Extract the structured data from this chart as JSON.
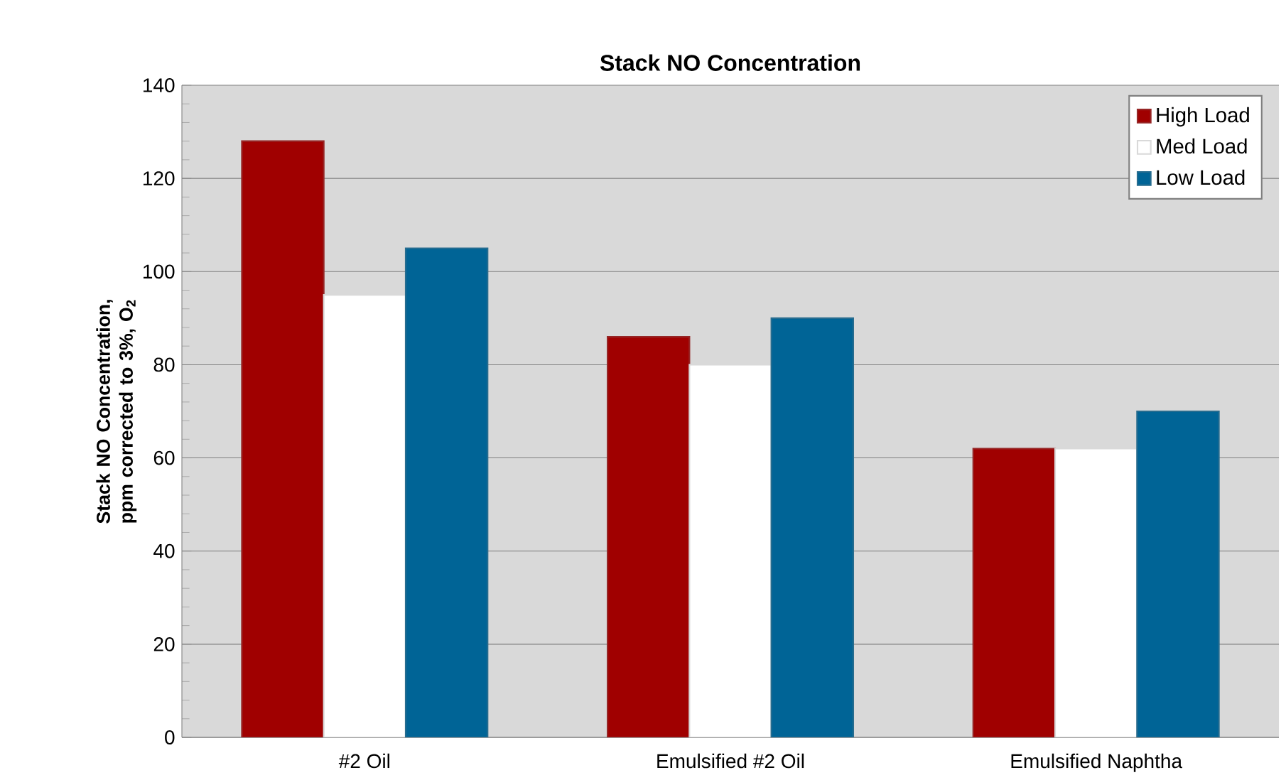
{
  "chart_data": {
    "type": "bar",
    "title": "Stack NO Concentration",
    "ylabel": "Stack NO Concentration, ppm corrected to 3%, O$_{2}$",
    "categories": [
      "#2 Oil",
      "Emulsified #2 Oil",
      "Emulsified Naphtha"
    ],
    "series": [
      {
        "name": "High Load",
        "color": "#a00000",
        "values": [
          128,
          86,
          62
        ]
      },
      {
        "name": "Med Load",
        "color": "#ffffff",
        "values": [
          95,
          80,
          62
        ]
      },
      {
        "name": "Low Load",
        "color": "#006496",
        "values": [
          105,
          90,
          70
        ]
      }
    ],
    "ylim": [
      0,
      140
    ],
    "yticks": [
      0,
      20,
      40,
      60,
      80,
      100,
      120,
      140
    ],
    "grid": "y",
    "legend": "top right"
  }
}
